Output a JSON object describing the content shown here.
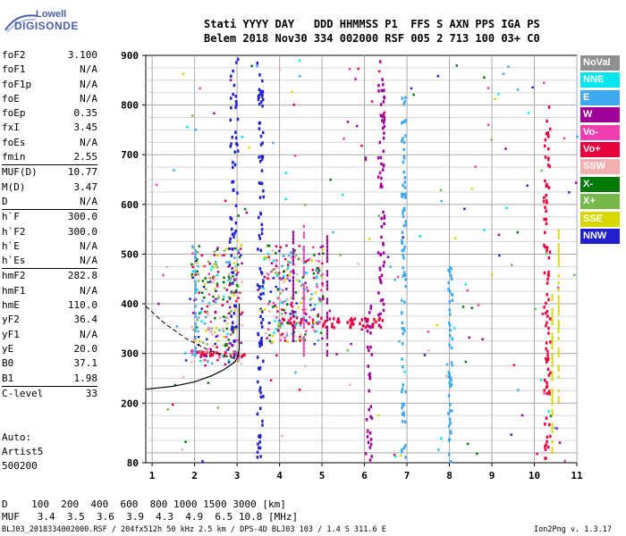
{
  "logo": {
    "line1": "Lowell",
    "line2": "DIGISONDE"
  },
  "header": {
    "line1": "Stati YYYY DAY   DDD HHMMSS P1  FFS S AXN PPS IGA PS",
    "line2": "Belem 2018 Nov30 334 002000 RSF 005 2 713 100 03+ C0"
  },
  "params": [
    {
      "k": "foF2",
      "v": "3.100",
      "sep": false
    },
    {
      "k": "foF1",
      "v": "N/A",
      "sep": false
    },
    {
      "k": "foF1p",
      "v": "N/A",
      "sep": false
    },
    {
      "k": "foE",
      "v": "N/A",
      "sep": false
    },
    {
      "k": "foEp",
      "v": "0.35",
      "sep": false
    },
    {
      "k": "fxI",
      "v": "3.45",
      "sep": false
    },
    {
      "k": "foEs",
      "v": "N/A",
      "sep": false
    },
    {
      "k": "fmin",
      "v": "2.55",
      "sep": false
    },
    {
      "k": "MUF(D)",
      "v": "10.77",
      "sep": true
    },
    {
      "k": "M(D)",
      "v": "3.47",
      "sep": false
    },
    {
      "k": "D",
      "v": "N/A",
      "sep": false
    },
    {
      "k": "h`F",
      "v": "300.0",
      "sep": true
    },
    {
      "k": "h`F2",
      "v": "300.0",
      "sep": false
    },
    {
      "k": "h`E",
      "v": "N/A",
      "sep": false
    },
    {
      "k": "h`Es",
      "v": "N/A",
      "sep": false
    },
    {
      "k": "hmF2",
      "v": "282.8",
      "sep": true
    },
    {
      "k": "hmF1",
      "v": "N/A",
      "sep": false
    },
    {
      "k": "hmE",
      "v": "110.0",
      "sep": false
    },
    {
      "k": "yF2",
      "v": "36.4",
      "sep": false
    },
    {
      "k": "yF1",
      "v": "N/A",
      "sep": false
    },
    {
      "k": "yE",
      "v": "20.0",
      "sep": false
    },
    {
      "k": "B0",
      "v": "37.1",
      "sep": false
    },
    {
      "k": "B1",
      "v": "1.98",
      "sep": false
    },
    {
      "k": "C-level",
      "v": "33",
      "sep": true
    }
  ],
  "auto": {
    "line1": "Auto:",
    "line2": "Artist5",
    "line3": "500200"
  },
  "legend": [
    {
      "label": "NoVal",
      "color": "#909090"
    },
    {
      "label": "NNE",
      "color": "#00e5ee"
    },
    {
      "label": "E",
      "color": "#3fa9ef"
    },
    {
      "label": "W",
      "color": "#a0009a"
    },
    {
      "label": "Vo-",
      "color": "#f040b0"
    },
    {
      "label": "Vo+",
      "color": "#e8003c"
    },
    {
      "label": "SSW",
      "color": "#f4b0b0"
    },
    {
      "label": "X-",
      "color": "#00780a"
    },
    {
      "label": "X+",
      "color": "#76b84a"
    },
    {
      "label": "SSE",
      "color": "#d8d800"
    },
    {
      "label": "NNW",
      "color": "#2020cc"
    }
  ],
  "footer": {
    "d_row": "D    100  200  400  600  800 1000 1500 3000 [km]",
    "muf_row": "MUF   3.4  3.5  3.6  3.9  4.3  4.9  6.5 10.8 [MHz]",
    "file_info": "BLJ03_2018334002000.RSF / 204fx512h 50 kHz 2.5 km / DPS-4D BLJ03 103 / 1.4 S 311.6 E",
    "version": "Ion2Png v. 1.3.17"
  },
  "chart_data": {
    "type": "scatter",
    "x_ticks": [
      "1",
      "2",
      "3",
      "4",
      "5",
      "6",
      "7",
      "8",
      "9",
      "10",
      "11"
    ],
    "y_ticks": [
      "80",
      "200",
      "300",
      "400",
      "500",
      "600",
      "700",
      "800",
      "900"
    ],
    "xlim": [
      0.85,
      11.0
    ],
    "ylim": [
      80,
      900
    ],
    "xlabel": "",
    "ylabel": "",
    "grid": true,
    "legend_placement": "right",
    "echo_traces": [
      {
        "name": "Vo+",
        "color": "#e8003c",
        "x_range": [
          2.0,
          3.2
        ],
        "y_range": [
          296,
          306
        ]
      },
      {
        "name": "Vo+",
        "color": "#e8003c",
        "x_range": [
          4.0,
          6.4
        ],
        "y_range": [
          355,
          375
        ]
      },
      {
        "name": "NNW",
        "color": "#2020cc",
        "x_range": [
          2.8,
          3.0
        ],
        "y_range": [
          300,
          900
        ]
      },
      {
        "name": "NNW",
        "color": "#2020cc",
        "x_range": [
          3.45,
          3.6
        ],
        "y_range": [
          90,
          900
        ]
      },
      {
        "name": "W",
        "color": "#a0009a",
        "x_range": [
          6.0,
          6.15
        ],
        "y_range": [
          85,
          400
        ]
      },
      {
        "name": "W",
        "color": "#a0009a",
        "x_range": [
          6.3,
          6.45
        ],
        "y_range": [
          350,
          900
        ]
      },
      {
        "name": "E",
        "color": "#3fa9ef",
        "x_range": [
          6.85,
          6.95
        ],
        "y_range": [
          85,
          820
        ]
      },
      {
        "name": "E",
        "color": "#3fa9ef",
        "x_range": [
          7.95,
          8.05
        ],
        "y_range": [
          85,
          500
        ]
      },
      {
        "name": "Vo+",
        "color": "#e8003c",
        "x_range": [
          10.2,
          10.35
        ],
        "y_range": [
          85,
          800
        ]
      }
    ],
    "trace_curve": [
      {
        "x": 0.85,
        "y": 228
      },
      {
        "x": 1.5,
        "y": 234
      },
      {
        "x": 2.0,
        "y": 243
      },
      {
        "x": 2.4,
        "y": 255
      },
      {
        "x": 2.7,
        "y": 268
      },
      {
        "x": 2.95,
        "y": 283
      },
      {
        "x": 3.02,
        "y": 295
      },
      {
        "x": 3.05,
        "y": 310
      },
      {
        "x": 3.05,
        "y": 350
      },
      {
        "x": 3.05,
        "y": 400
      }
    ],
    "dashed_curve": [
      {
        "x": 0.85,
        "y": 395
      },
      {
        "x": 1.3,
        "y": 360
      },
      {
        "x": 1.8,
        "y": 330
      },
      {
        "x": 2.3,
        "y": 308
      },
      {
        "x": 2.7,
        "y": 296
      },
      {
        "x": 3.0,
        "y": 288
      }
    ]
  }
}
